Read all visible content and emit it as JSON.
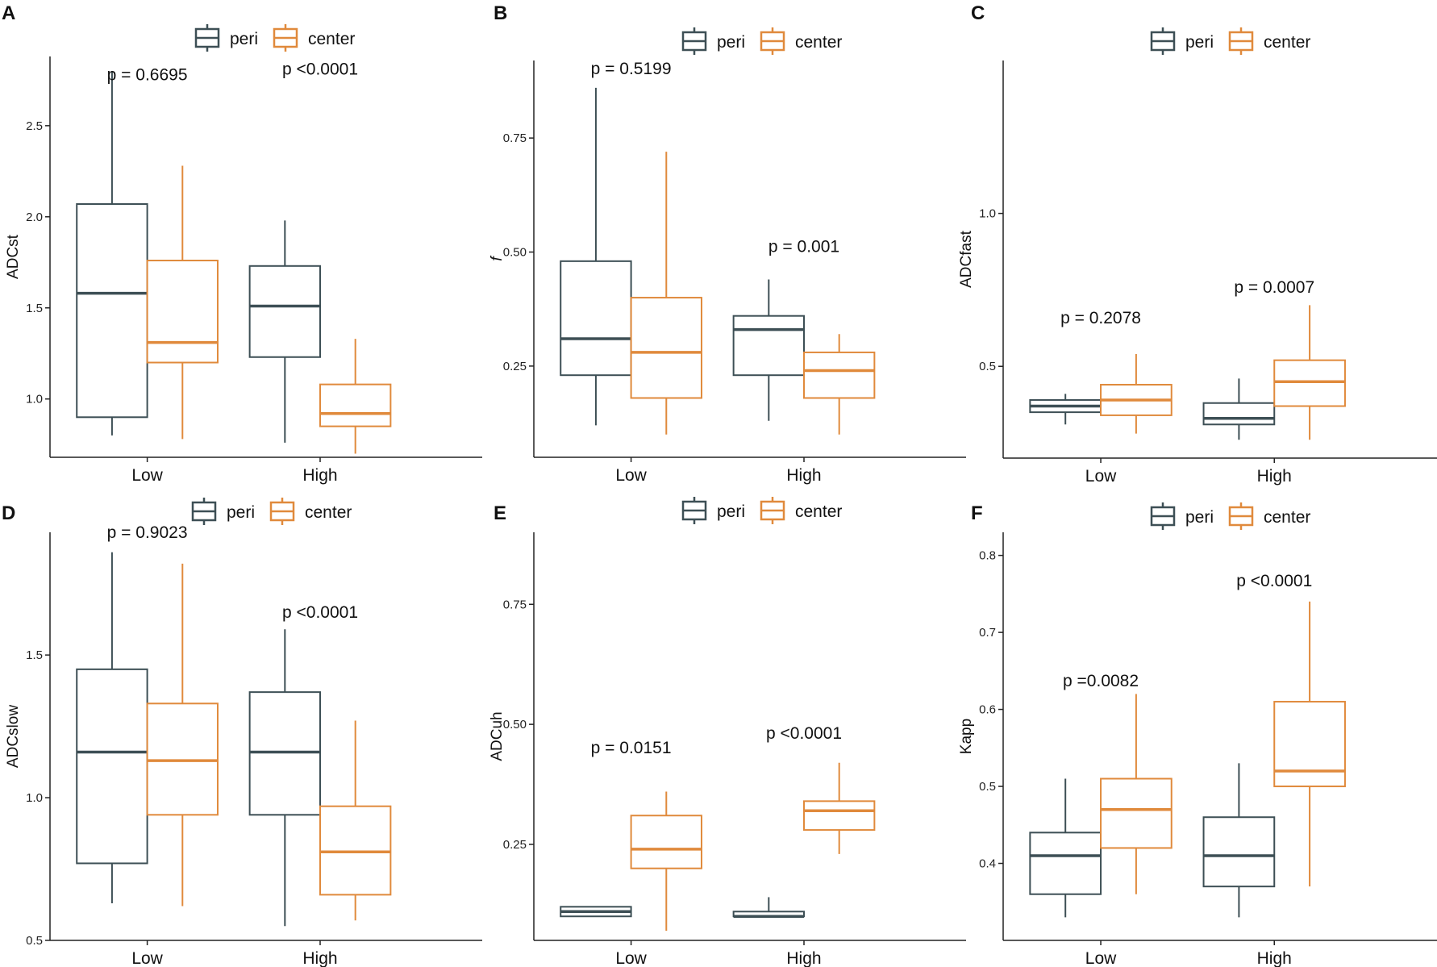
{
  "figure": {
    "legend": {
      "title": "",
      "items": [
        "peri",
        "center"
      ]
    },
    "colors": {
      "peri": "#3d4f55",
      "center": "#e08a3c",
      "axis": "#222222"
    }
  },
  "chart_data": [
    {
      "panel": "A",
      "type": "box",
      "ylabel": "ADCst",
      "categories": [
        "Low",
        "High"
      ],
      "ylim": [
        0.68,
        2.88
      ],
      "yticks": [
        1.0,
        1.5,
        2.0,
        2.5
      ],
      "tick_labels": [
        "1.0",
        "1.5",
        "2.0",
        "2.5"
      ],
      "series": [
        {
          "name": "peri",
          "boxes": [
            {
              "min": 0.8,
              "q1": 0.9,
              "median": 1.58,
              "q3": 2.07,
              "max": 2.8
            },
            {
              "min": 0.76,
              "q1": 1.23,
              "median": 1.51,
              "q3": 1.73,
              "max": 1.98
            }
          ]
        },
        {
          "name": "center",
          "boxes": [
            {
              "min": 0.78,
              "q1": 1.2,
              "median": 1.31,
              "q3": 1.76,
              "max": 2.28
            },
            {
              "min": 0.7,
              "q1": 0.85,
              "median": 0.92,
              "q3": 1.08,
              "max": 1.33
            }
          ]
        }
      ],
      "pvalues": [
        "p = 0.6695",
        "p <0.0001"
      ],
      "pvalue_levels": [
        2.75,
        2.78
      ]
    },
    {
      "panel": "B",
      "type": "box",
      "ylabel": "f",
      "categories": [
        "Low",
        "High"
      ],
      "ylim": [
        0.05,
        0.92
      ],
      "yticks": [
        0.25,
        0.5,
        0.75
      ],
      "tick_labels": [
        "0.25",
        "0.50",
        "0.75"
      ],
      "series": [
        {
          "name": "peri",
          "boxes": [
            {
              "min": 0.12,
              "q1": 0.23,
              "median": 0.31,
              "q3": 0.48,
              "max": 0.86
            },
            {
              "min": 0.13,
              "q1": 0.23,
              "median": 0.33,
              "q3": 0.36,
              "max": 0.44
            }
          ]
        },
        {
          "name": "center",
          "boxes": [
            {
              "min": 0.1,
              "q1": 0.18,
              "median": 0.28,
              "q3": 0.4,
              "max": 0.72
            },
            {
              "min": 0.1,
              "q1": 0.18,
              "median": 0.24,
              "q3": 0.28,
              "max": 0.32
            }
          ]
        }
      ],
      "pvalues": [
        "p = 0.5199",
        "p = 0.001"
      ],
      "pvalue_levels": [
        0.89,
        0.5
      ]
    },
    {
      "panel": "C",
      "type": "box",
      "ylabel": "ADCfast",
      "categories": [
        "Low",
        "High"
      ],
      "ylim": [
        0.2,
        1.5
      ],
      "yticks": [
        0.5,
        1.0
      ],
      "tick_labels": [
        "0.5",
        "1.0"
      ],
      "series": [
        {
          "name": "peri",
          "boxes": [
            {
              "min": 0.31,
              "q1": 0.35,
              "median": 0.37,
              "q3": 0.39,
              "max": 0.41
            },
            {
              "min": 0.26,
              "q1": 0.31,
              "median": 0.33,
              "q3": 0.38,
              "max": 0.46
            }
          ]
        },
        {
          "name": "center",
          "boxes": [
            {
              "min": 0.28,
              "q1": 0.34,
              "median": 0.39,
              "q3": 0.44,
              "max": 0.54
            },
            {
              "min": 0.26,
              "q1": 0.37,
              "median": 0.45,
              "q3": 0.52,
              "max": 0.7
            }
          ]
        }
      ],
      "pvalues": [
        "p = 0.2078",
        "p = 0.0007"
      ],
      "pvalue_levels": [
        0.64,
        0.74
      ]
    },
    {
      "panel": "D",
      "type": "box",
      "ylabel": "ADCslow",
      "categories": [
        "Low",
        "High"
      ],
      "ylim": [
        0.5,
        1.93
      ],
      "yticks": [
        0.5,
        1.0,
        1.5
      ],
      "tick_labels": [
        "0.5",
        "1.0",
        "1.5"
      ],
      "series": [
        {
          "name": "peri",
          "boxes": [
            {
              "min": 0.63,
              "q1": 0.77,
              "median": 1.16,
              "q3": 1.45,
              "max": 1.86
            },
            {
              "min": 0.55,
              "q1": 0.94,
              "median": 1.16,
              "q3": 1.37,
              "max": 1.59
            }
          ]
        },
        {
          "name": "center",
          "boxes": [
            {
              "min": 0.62,
              "q1": 0.94,
              "median": 1.13,
              "q3": 1.33,
              "max": 1.82
            },
            {
              "min": 0.57,
              "q1": 0.66,
              "median": 0.81,
              "q3": 0.97,
              "max": 1.27
            }
          ]
        }
      ],
      "pvalues": [
        "p = 0.9023",
        "p <0.0001"
      ],
      "pvalue_levels": [
        1.91,
        1.63
      ]
    },
    {
      "panel": "E",
      "type": "box",
      "ylabel": "ADCuh",
      "categories": [
        "Low",
        "High"
      ],
      "ylim": [
        0.05,
        0.9
      ],
      "yticks": [
        0.25,
        0.5,
        0.75
      ],
      "tick_labels": [
        "0.25",
        "0.50",
        "0.75"
      ],
      "series": [
        {
          "name": "peri",
          "boxes": [
            {
              "min": 0.1,
              "q1": 0.1,
              "median": 0.11,
              "q3": 0.12,
              "max": 0.12
            },
            {
              "min": 0.1,
              "q1": 0.1,
              "median": 0.1,
              "q3": 0.11,
              "max": 0.14
            }
          ]
        },
        {
          "name": "center",
          "boxes": [
            {
              "min": 0.07,
              "q1": 0.2,
              "median": 0.24,
              "q3": 0.31,
              "max": 0.36
            },
            {
              "min": 0.23,
              "q1": 0.28,
              "median": 0.32,
              "q3": 0.34,
              "max": 0.42
            }
          ]
        }
      ],
      "pvalues": [
        "p = 0.0151",
        "p <0.0001"
      ],
      "pvalue_levels": [
        0.44,
        0.47
      ]
    },
    {
      "panel": "F",
      "type": "box",
      "ylabel": "Kapp",
      "categories": [
        "Low",
        "High"
      ],
      "ylim": [
        0.3,
        0.83
      ],
      "yticks": [
        0.4,
        0.5,
        0.6,
        0.7,
        0.8
      ],
      "tick_labels": [
        "0.4",
        "0.5",
        "0.6",
        "0.7",
        "0.8"
      ],
      "series": [
        {
          "name": "peri",
          "boxes": [
            {
              "min": 0.33,
              "q1": 0.36,
              "median": 0.41,
              "q3": 0.44,
              "max": 0.51
            },
            {
              "min": 0.33,
              "q1": 0.37,
              "median": 0.41,
              "q3": 0.46,
              "max": 0.53
            }
          ]
        },
        {
          "name": "center",
          "boxes": [
            {
              "min": 0.36,
              "q1": 0.42,
              "median": 0.47,
              "q3": 0.51,
              "max": 0.62
            },
            {
              "min": 0.37,
              "q1": 0.5,
              "median": 0.52,
              "q3": 0.61,
              "max": 0.74
            }
          ]
        }
      ],
      "pvalues": [
        "p =0.0082",
        "p <0.0001"
      ],
      "pvalue_levels": [
        0.63,
        0.76
      ]
    }
  ]
}
